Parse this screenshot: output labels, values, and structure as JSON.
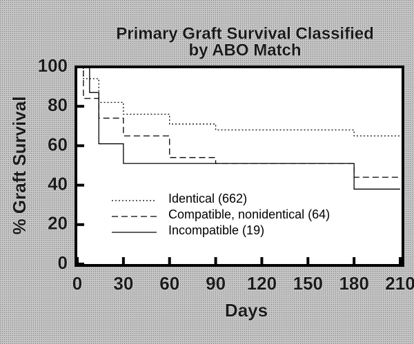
{
  "chart_data": {
    "type": "step",
    "title": [
      "Primary Graft Survival Classified",
      "by ABO Match"
    ],
    "xlabel": "Days",
    "ylabel": "% Graft Survival",
    "xlim": [
      0,
      210
    ],
    "xticks": [
      0,
      30,
      60,
      90,
      120,
      150,
      180,
      210
    ],
    "ylim": [
      0,
      100
    ],
    "yticks": [
      0,
      20,
      40,
      60,
      80,
      100
    ],
    "legend": "lower-left",
    "series": [
      {
        "name": "Identical (662)",
        "color": "#000000",
        "dash": "dotted",
        "x": [
          0,
          4,
          14,
          30,
          60,
          90,
          180,
          210
        ],
        "values": [
          100,
          94,
          82,
          76,
          71,
          68,
          65,
          65
        ]
      },
      {
        "name": "Compatible, nonidentical (64)",
        "color": "#000000",
        "dash": "dashed",
        "x": [
          0,
          4,
          14,
          30,
          60,
          90,
          180,
          210
        ],
        "values": [
          100,
          84,
          74,
          65,
          54,
          51,
          44,
          44
        ]
      },
      {
        "name": "Incompatible (19)",
        "color": "#000000",
        "dash": "solid",
        "x": [
          0,
          8,
          14,
          30,
          180,
          210
        ],
        "values": [
          100,
          87,
          61,
          51,
          38,
          38
        ]
      }
    ]
  }
}
